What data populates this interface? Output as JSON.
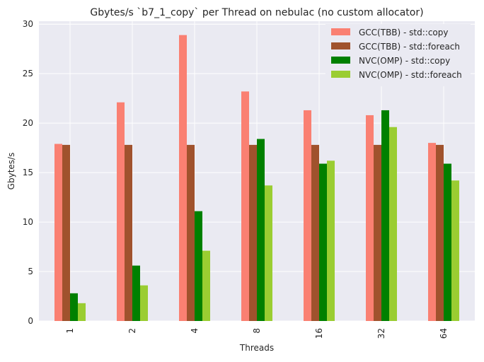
{
  "chart_data": {
    "type": "bar",
    "title": "Gbytes/s `b7_1_copy` per Thread on nebulac (no custom allocator)",
    "xlabel": "Threads",
    "ylabel": "Gbytes/s",
    "categories": [
      "1",
      "2",
      "4",
      "8",
      "16",
      "32",
      "64"
    ],
    "ylim": [
      0,
      30.3
    ],
    "yticks": [
      0,
      5,
      10,
      15,
      20,
      25,
      30
    ],
    "grid": true,
    "legend_position": "top-right",
    "series": [
      {
        "name": "GCC(TBB) - std::copy",
        "color": "#fa8072",
        "values": [
          17.9,
          22.1,
          28.9,
          23.2,
          21.3,
          20.8,
          18.0
        ]
      },
      {
        "name": "GCC(TBB) - std::foreach",
        "color": "#a0522d",
        "values": [
          17.8,
          17.8,
          17.8,
          17.8,
          17.8,
          17.8,
          17.8
        ]
      },
      {
        "name": "NVC(OMP) - std::copy",
        "color": "#008000",
        "values": [
          2.8,
          5.6,
          11.1,
          18.4,
          15.9,
          21.3,
          15.9
        ]
      },
      {
        "name": "NVC(OMP) - std::foreach",
        "color": "#9acd32",
        "values": [
          1.8,
          3.6,
          7.1,
          13.7,
          16.2,
          19.6,
          14.2
        ]
      }
    ]
  }
}
